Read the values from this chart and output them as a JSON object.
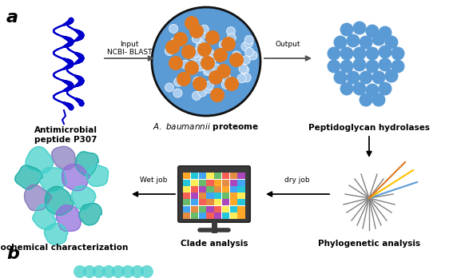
{
  "background_color": "#ffffff",
  "label_a": "a",
  "label_b": "b",
  "label_fontsize": 16,
  "label_font": "italic",
  "text_antimicrobial": "Antimicrobial\npeptide P307",
  "text_peptidoglycan": "Peptidoglycan hydrolases",
  "text_biochemical": "Biochemical characterization",
  "text_clade": "Clade analysis",
  "text_phylogenetic": "Phylogenetic analysis",
  "text_input": "Input",
  "text_ncbi": "NCBI- BLAST",
  "text_output": "Output",
  "text_wet": "Wet job",
  "text_dry": "dry job",
  "proteome_bg": "#5b9bd5",
  "proteome_border": "#111111",
  "orange_dot_color": "#e07820",
  "blue_dot_color": "#5b9bd5",
  "blue_dot_light": "#88c0e0",
  "protein_color": "#0000cc",
  "bold_labels_fontsize": 7.5,
  "arrow_label_fontsize": 6.5
}
